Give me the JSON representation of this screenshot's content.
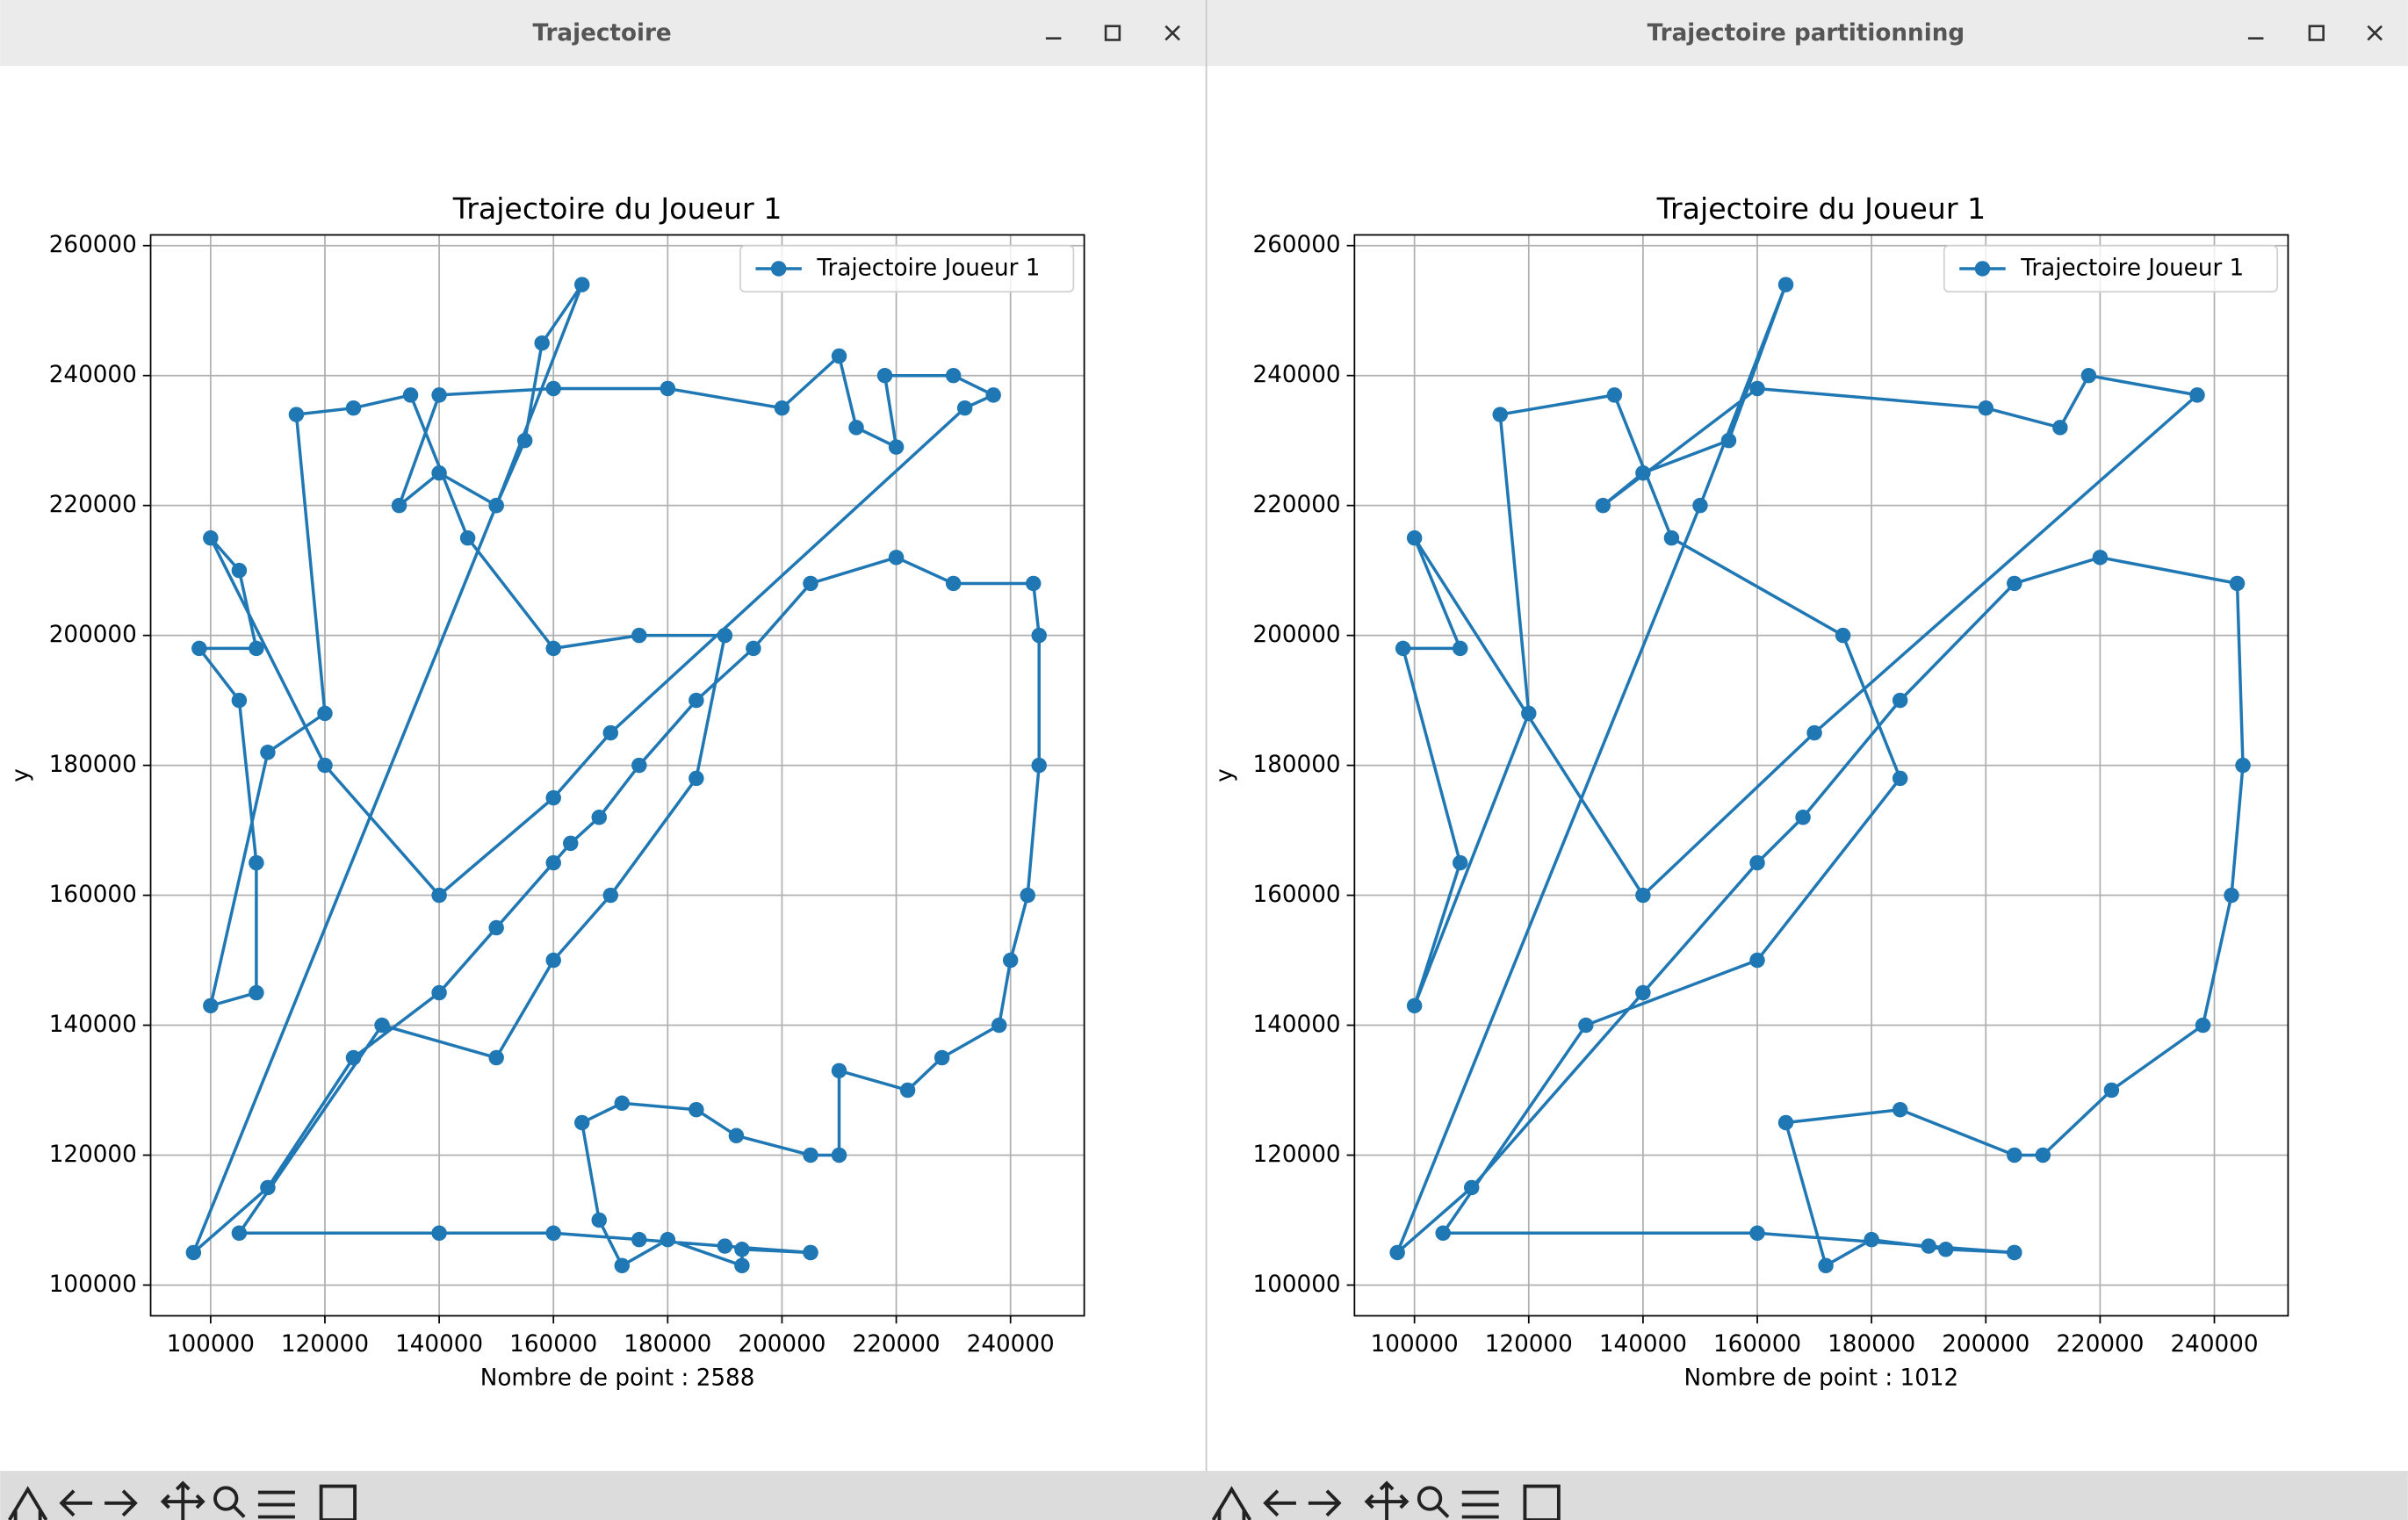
{
  "windows": [
    {
      "title": "Trajectoire"
    },
    {
      "title": "Trajectoire partitionning"
    }
  ],
  "chart_data": [
    {
      "type": "line",
      "title": "Trajectoire du Joueur 1",
      "xlabel": "Nombre de point : 2588",
      "ylabel": "y",
      "x": [
        205000,
        193000,
        193000,
        180000,
        172000,
        168000,
        165000,
        172000,
        185000,
        192000,
        205000,
        210000,
        210000,
        222000,
        228000,
        238000,
        240000,
        243000,
        245000,
        245000,
        244000,
        230000,
        220000,
        205000,
        195000,
        185000,
        175000,
        168000,
        163000,
        160000,
        150000,
        140000,
        125000,
        110000,
        97000,
        150000,
        165000,
        158000,
        155000,
        150000,
        140000,
        133000,
        140000,
        160000,
        180000,
        200000,
        210000,
        213000,
        220000,
        218000,
        230000,
        237000,
        232000,
        170000,
        160000,
        140000,
        120000,
        100000,
        105000,
        108000,
        98000,
        105000,
        108000,
        108000,
        100000,
        110000,
        120000,
        115000,
        125000,
        135000,
        145000,
        160000,
        175000,
        190000,
        185000,
        170000,
        160000,
        150000,
        130000,
        105000,
        140000,
        160000,
        175000,
        190000,
        205000
      ],
      "series": [
        {
          "name": "Trajectoire Joueur 1",
          "color": "#1f77b4",
          "values": [
            105000,
            105500,
            103000,
            107000,
            103000,
            110000,
            125000,
            128000,
            127000,
            123000,
            120000,
            120000,
            133000,
            130000,
            135000,
            140000,
            150000,
            160000,
            180000,
            200000,
            208000,
            208000,
            212000,
            208000,
            198000,
            190000,
            180000,
            172000,
            168000,
            165000,
            155000,
            145000,
            135000,
            115000,
            105000,
            220000,
            254000,
            245000,
            230000,
            220000,
            225000,
            220000,
            237000,
            238000,
            238000,
            235000,
            243000,
            232000,
            229000,
            240000,
            240000,
            237000,
            235000,
            185000,
            175000,
            160000,
            180000,
            215000,
            210000,
            198000,
            198000,
            190000,
            165000,
            145000,
            143000,
            182000,
            188000,
            234000,
            235000,
            237000,
            215000,
            198000,
            200000,
            200000,
            178000,
            160000,
            150000,
            135000,
            140000,
            108000,
            108000,
            108000,
            107000,
            106000,
            105000
          ]
        }
      ],
      "xlim": [
        89500,
        252900
      ],
      "ylim": [
        95270,
        261650
      ],
      "xticks": [
        100000,
        120000,
        140000,
        160000,
        180000,
        200000,
        220000,
        240000
      ],
      "yticks": [
        100000,
        120000,
        140000,
        160000,
        180000,
        200000,
        220000,
        240000,
        260000
      ],
      "grid": true,
      "legend": "upper right"
    },
    {
      "type": "line",
      "title": "Trajectoire du Joueur 1",
      "xlabel": "Nombre de point : 1012",
      "ylabel": "y",
      "x": [
        205000,
        193000,
        180000,
        172000,
        165000,
        185000,
        205000,
        210000,
        222000,
        238000,
        243000,
        245000,
        244000,
        220000,
        205000,
        185000,
        168000,
        160000,
        140000,
        110000,
        97000,
        150000,
        165000,
        155000,
        140000,
        133000,
        160000,
        200000,
        213000,
        218000,
        237000,
        170000,
        140000,
        100000,
        108000,
        98000,
        108000,
        100000,
        120000,
        115000,
        135000,
        145000,
        175000,
        185000,
        160000,
        130000,
        105000,
        160000,
        190000,
        205000
      ],
      "series": [
        {
          "name": "Trajectoire Joueur 1",
          "color": "#1f77b4",
          "values": [
            105000,
            105500,
            107000,
            103000,
            125000,
            127000,
            120000,
            120000,
            130000,
            140000,
            160000,
            180000,
            208000,
            212000,
            208000,
            190000,
            172000,
            165000,
            145000,
            115000,
            105000,
            220000,
            254000,
            230000,
            225000,
            220000,
            238000,
            235000,
            232000,
            240000,
            237000,
            185000,
            160000,
            215000,
            198000,
            198000,
            165000,
            143000,
            188000,
            234000,
            237000,
            215000,
            200000,
            178000,
            150000,
            140000,
            108000,
            108000,
            106000,
            105000
          ]
        }
      ],
      "xlim": [
        89500,
        252900
      ],
      "ylim": [
        95270,
        261650
      ],
      "xticks": [
        100000,
        120000,
        140000,
        160000,
        180000,
        200000,
        220000,
        240000
      ],
      "yticks": [
        100000,
        120000,
        140000,
        160000,
        180000,
        200000,
        220000,
        240000,
        260000
      ],
      "grid": true,
      "legend": "upper right"
    }
  ]
}
